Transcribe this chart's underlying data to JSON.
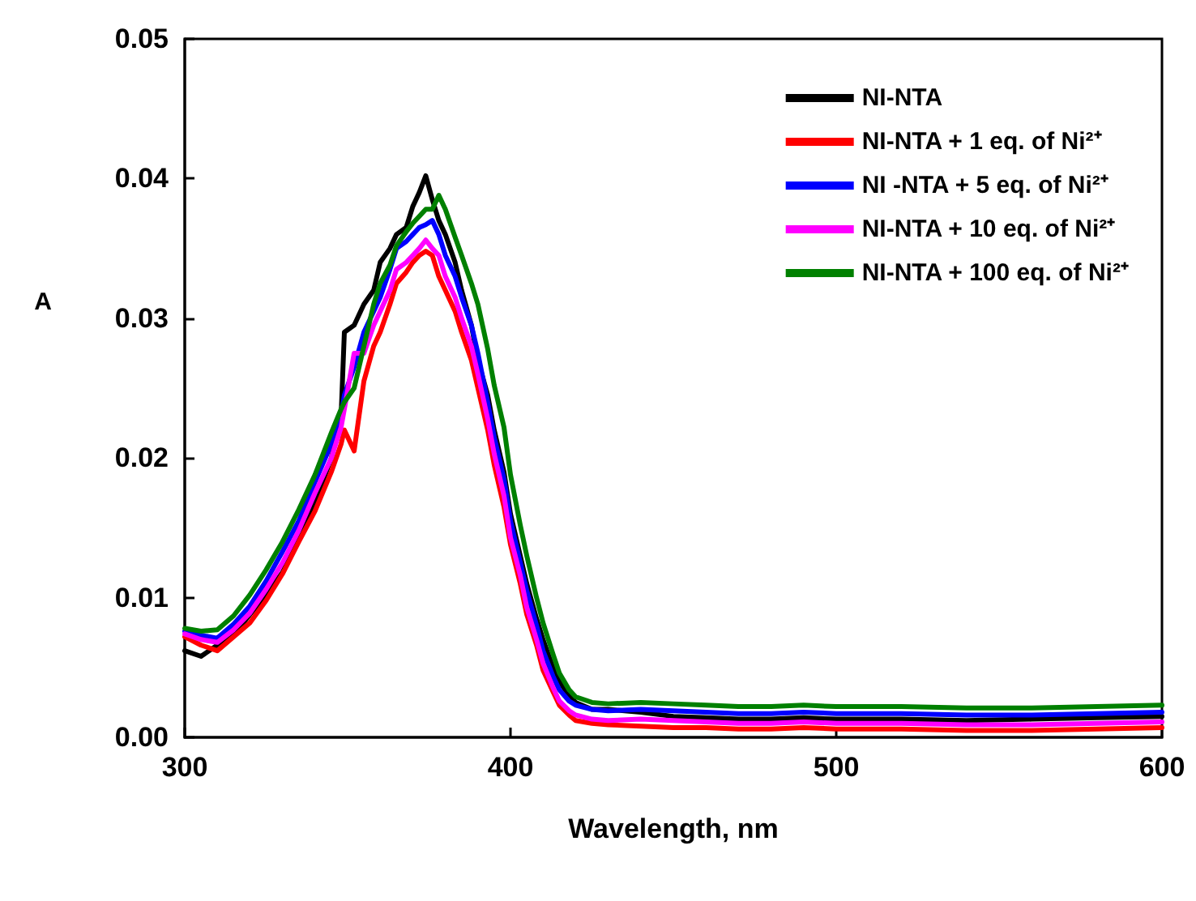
{
  "chart_data": {
    "type": "line",
    "xlabel": "Wavelength, nm",
    "ylabel": "A",
    "xlim": [
      300,
      600
    ],
    "xticks": [
      300,
      400,
      500,
      600
    ],
    "ylim": [
      0,
      0.05
    ],
    "yticks": [
      {
        "value": 0,
        "label": "0.00"
      },
      {
        "value": 0.01,
        "label": "0.01"
      },
      {
        "value": 0.02,
        "label": "0.02"
      },
      {
        "value": 0.03,
        "label": "0.03"
      },
      {
        "value": 0.04,
        "label": "0.04"
      },
      {
        "value": 0.05,
        "label": "0.05"
      }
    ],
    "grid": false,
    "legend": "top right",
    "marker": "none",
    "line_style": "solid",
    "x": [
      300,
      305,
      310,
      315,
      320,
      325,
      330,
      335,
      340,
      345,
      348,
      349,
      352,
      355,
      358,
      360,
      363,
      365,
      368,
      370,
      372,
      374,
      376,
      378,
      380,
      383,
      385,
      388,
      390,
      393,
      395,
      398,
      400,
      403,
      405,
      408,
      410,
      413,
      415,
      418,
      420,
      425,
      430,
      440,
      450,
      460,
      470,
      480,
      490,
      500,
      520,
      540,
      560,
      580,
      600
    ],
    "series": [
      {
        "name": "NI-NTA",
        "color": "#000000",
        "values": [
          0.0062,
          0.0058,
          0.0066,
          0.0073,
          0.0088,
          0.0102,
          0.0118,
          0.0142,
          0.0168,
          0.02,
          0.023,
          0.029,
          0.0295,
          0.031,
          0.032,
          0.034,
          0.035,
          0.036,
          0.0365,
          0.038,
          0.039,
          0.0402,
          0.0385,
          0.037,
          0.036,
          0.034,
          0.032,
          0.0295,
          0.027,
          0.0245,
          0.022,
          0.019,
          0.016,
          0.013,
          0.011,
          0.0085,
          0.007,
          0.005,
          0.004,
          0.003,
          0.0025,
          0.002,
          0.002,
          0.0018,
          0.0015,
          0.0014,
          0.0013,
          0.0013,
          0.0014,
          0.0013,
          0.0013,
          0.0012,
          0.0013,
          0.0014,
          0.0015
        ]
      },
      {
        "name": "NI-NTA + 1 eq. of Ni²⁺",
        "color": "#ff0000",
        "values": [
          0.0072,
          0.0066,
          0.0062,
          0.0072,
          0.0082,
          0.0098,
          0.0117,
          0.014,
          0.0162,
          0.019,
          0.021,
          0.022,
          0.0205,
          0.0255,
          0.028,
          0.029,
          0.031,
          0.0325,
          0.0333,
          0.034,
          0.0345,
          0.0348,
          0.0345,
          0.033,
          0.032,
          0.0305,
          0.029,
          0.027,
          0.025,
          0.022,
          0.0195,
          0.0165,
          0.0138,
          0.011,
          0.0088,
          0.0066,
          0.0048,
          0.0033,
          0.0023,
          0.0016,
          0.0012,
          0.001,
          0.0009,
          0.0008,
          0.0007,
          0.0007,
          0.0006,
          0.0006,
          0.0007,
          0.0006,
          0.0006,
          0.0005,
          0.0005,
          0.0006,
          0.0007
        ]
      },
      {
        "name": "NI -NTA + 5 eq. of Ni²⁺",
        "color": "#0000ff",
        "values": [
          0.0076,
          0.0073,
          0.0071,
          0.0081,
          0.0094,
          0.0112,
          0.0133,
          0.0155,
          0.0183,
          0.021,
          0.023,
          0.0245,
          0.0265,
          0.029,
          0.0305,
          0.0315,
          0.0335,
          0.035,
          0.0355,
          0.036,
          0.0365,
          0.0367,
          0.037,
          0.036,
          0.0345,
          0.033,
          0.0315,
          0.0295,
          0.0275,
          0.024,
          0.0215,
          0.0185,
          0.0155,
          0.0125,
          0.0105,
          0.008,
          0.0062,
          0.0044,
          0.0034,
          0.0026,
          0.0023,
          0.002,
          0.0019,
          0.002,
          0.0019,
          0.0018,
          0.0017,
          0.0017,
          0.0018,
          0.0017,
          0.0017,
          0.0016,
          0.0016,
          0.0017,
          0.0018
        ]
      },
      {
        "name": "NI-NTA + 10 eq. of Ni²⁺",
        "color": "#ff00ff",
        "values": [
          0.0074,
          0.007,
          0.0068,
          0.0077,
          0.0089,
          0.0106,
          0.0125,
          0.0148,
          0.0175,
          0.02,
          0.0222,
          0.0235,
          0.0275,
          0.0275,
          0.0295,
          0.0305,
          0.032,
          0.0335,
          0.034,
          0.0345,
          0.035,
          0.0356,
          0.035,
          0.0345,
          0.033,
          0.0315,
          0.03,
          0.028,
          0.026,
          0.0228,
          0.0203,
          0.0173,
          0.0143,
          0.0116,
          0.0093,
          0.007,
          0.0053,
          0.0036,
          0.0026,
          0.0019,
          0.0016,
          0.0013,
          0.0012,
          0.0013,
          0.0012,
          0.0011,
          0.001,
          0.001,
          0.0011,
          0.001,
          0.001,
          0.0009,
          0.0009,
          0.001,
          0.0011
        ]
      },
      {
        "name": "NI-NTA + 100 eq. of Ni²⁺",
        "color": "#008000",
        "values": [
          0.0078,
          0.0076,
          0.0077,
          0.0087,
          0.0102,
          0.012,
          0.014,
          0.0163,
          0.0188,
          0.0218,
          0.0235,
          0.024,
          0.025,
          0.028,
          0.031,
          0.0325,
          0.0338,
          0.0352,
          0.0362,
          0.0368,
          0.0373,
          0.0378,
          0.0378,
          0.0388,
          0.0378,
          0.0358,
          0.0345,
          0.0325,
          0.031,
          0.0278,
          0.0252,
          0.0222,
          0.0188,
          0.0152,
          0.013,
          0.01,
          0.0082,
          0.006,
          0.0046,
          0.0034,
          0.0029,
          0.0025,
          0.0024,
          0.0025,
          0.0024,
          0.0023,
          0.0022,
          0.0022,
          0.0023,
          0.0022,
          0.0022,
          0.0021,
          0.0021,
          0.0022,
          0.0023
        ]
      }
    ]
  }
}
